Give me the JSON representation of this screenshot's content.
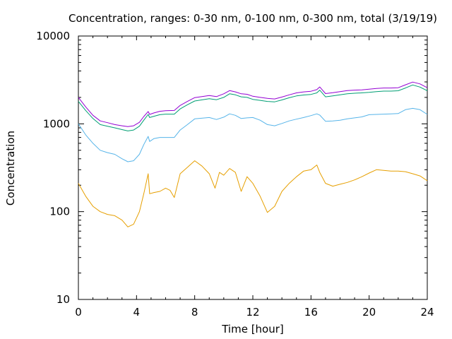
{
  "chart_data": {
    "type": "line",
    "title": "Concentration, ranges: 0-30 nm, 0-100 nm, 0-300 nm, total (3/19/19)",
    "xlabel": "Time [hour]",
    "ylabel": "Concentration",
    "xlim": [
      0,
      24
    ],
    "ylim": [
      10,
      10000
    ],
    "yscale": "log",
    "xticks": [
      "0",
      "4",
      "8",
      "12",
      "16",
      "20",
      "24"
    ],
    "yticks": [
      "10",
      "100",
      "1000",
      "10000"
    ],
    "grid": false,
    "legend": "none",
    "series": [
      {
        "color": "#e69f00",
        "x": [
          0,
          0.5,
          1,
          1.5,
          2,
          2.5,
          3,
          3.4,
          3.8,
          4.2,
          4.5,
          4.8,
          4.9,
          5.2,
          5.6,
          6,
          6.3,
          6.6,
          7,
          7.5,
          8,
          8.5,
          9,
          9.4,
          9.7,
          10,
          10.4,
          10.8,
          11.2,
          11.6,
          12,
          12.5,
          13,
          13.5,
          14,
          14.5,
          15,
          15.5,
          16,
          16.4,
          16.6,
          17,
          17.5,
          18,
          18.5,
          19,
          19.5,
          20,
          20.5,
          21,
          21.5,
          22,
          22.5,
          23,
          23.5,
          24
        ],
        "values": [
          210,
          150,
          115,
          100,
          93,
          90,
          80,
          67,
          72,
          100,
          160,
          270,
          160,
          165,
          170,
          185,
          175,
          145,
          270,
          320,
          380,
          330,
          270,
          185,
          280,
          260,
          310,
          280,
          170,
          250,
          210,
          150,
          98,
          115,
          170,
          210,
          250,
          290,
          300,
          340,
          280,
          210,
          195,
          205,
          215,
          230,
          250,
          275,
          300,
          295,
          290,
          290,
          285,
          270,
          255,
          225
        ]
      },
      {
        "color": "#56b4e9",
        "x": [
          0,
          0.5,
          1,
          1.5,
          2,
          2.5,
          3,
          3.4,
          3.8,
          4.2,
          4.5,
          4.8,
          4.9,
          5.2,
          5.6,
          6,
          6.6,
          7,
          7.5,
          8,
          9,
          9.5,
          10,
          10.4,
          10.8,
          11.2,
          11.6,
          12,
          12.5,
          13,
          13.5,
          14,
          14.5,
          15,
          15.5,
          16,
          16.4,
          16.6,
          17,
          17.5,
          18,
          18.5,
          19,
          19.5,
          20,
          20.5,
          21,
          21.5,
          22,
          22.5,
          23,
          23.5,
          24
        ],
        "values": [
          1000,
          750,
          600,
          500,
          470,
          450,
          400,
          370,
          380,
          450,
          580,
          720,
          630,
          680,
          700,
          700,
          700,
          850,
          980,
          1140,
          1180,
          1120,
          1190,
          1300,
          1250,
          1150,
          1170,
          1180,
          1100,
          980,
          950,
          1010,
          1080,
          1130,
          1180,
          1240,
          1300,
          1260,
          1070,
          1080,
          1100,
          1140,
          1170,
          1200,
          1270,
          1280,
          1290,
          1300,
          1310,
          1450,
          1500,
          1450,
          1280
        ]
      },
      {
        "color": "#009e73",
        "x": [
          0,
          0.5,
          1,
          1.5,
          2,
          2.5,
          3,
          3.4,
          3.8,
          4.2,
          4.5,
          4.8,
          4.9,
          5.2,
          5.6,
          6,
          6.6,
          7,
          7.5,
          8,
          9,
          9.5,
          10,
          10.4,
          10.8,
          11.2,
          11.6,
          12,
          12.5,
          13,
          13.5,
          14,
          14.5,
          15,
          15.5,
          16,
          16.4,
          16.6,
          17,
          17.5,
          18,
          18.5,
          19,
          19.5,
          20,
          20.5,
          21,
          21.5,
          22,
          22.5,
          23,
          23.5,
          24
        ],
        "values": [
          1800,
          1420,
          1150,
          980,
          940,
          900,
          860,
          830,
          850,
          940,
          1100,
          1280,
          1180,
          1220,
          1270,
          1290,
          1290,
          1480,
          1650,
          1820,
          1930,
          1880,
          2000,
          2200,
          2140,
          2030,
          2000,
          1900,
          1850,
          1800,
          1780,
          1870,
          1980,
          2080,
          2130,
          2160,
          2250,
          2420,
          2030,
          2080,
          2140,
          2200,
          2230,
          2250,
          2280,
          2330,
          2360,
          2360,
          2380,
          2560,
          2770,
          2620,
          2380
        ]
      },
      {
        "color": "#9400d3",
        "x": [
          0,
          0.5,
          1,
          1.5,
          2,
          2.5,
          3,
          3.4,
          3.8,
          4.2,
          4.5,
          4.8,
          4.9,
          5.2,
          5.6,
          6,
          6.6,
          7,
          7.5,
          8,
          9,
          9.5,
          10,
          10.4,
          10.8,
          11.2,
          11.6,
          12,
          12.5,
          13,
          13.5,
          14,
          14.5,
          15,
          15.5,
          16,
          16.4,
          16.6,
          17,
          17.5,
          18,
          18.5,
          19,
          19.5,
          20,
          20.5,
          21,
          21.5,
          22,
          22.5,
          23,
          23.5,
          24
        ],
        "values": [
          2000,
          1560,
          1250,
          1080,
          1030,
          980,
          950,
          930,
          950,
          1040,
          1210,
          1380,
          1280,
          1330,
          1390,
          1410,
          1420,
          1620,
          1800,
          1990,
          2100,
          2040,
          2200,
          2390,
          2310,
          2200,
          2170,
          2060,
          2000,
          1950,
          1920,
          2020,
          2140,
          2250,
          2310,
          2350,
          2450,
          2630,
          2210,
          2260,
          2330,
          2390,
          2420,
          2440,
          2480,
          2530,
          2560,
          2560,
          2580,
          2780,
          2990,
          2850,
          2580
        ]
      }
    ]
  }
}
